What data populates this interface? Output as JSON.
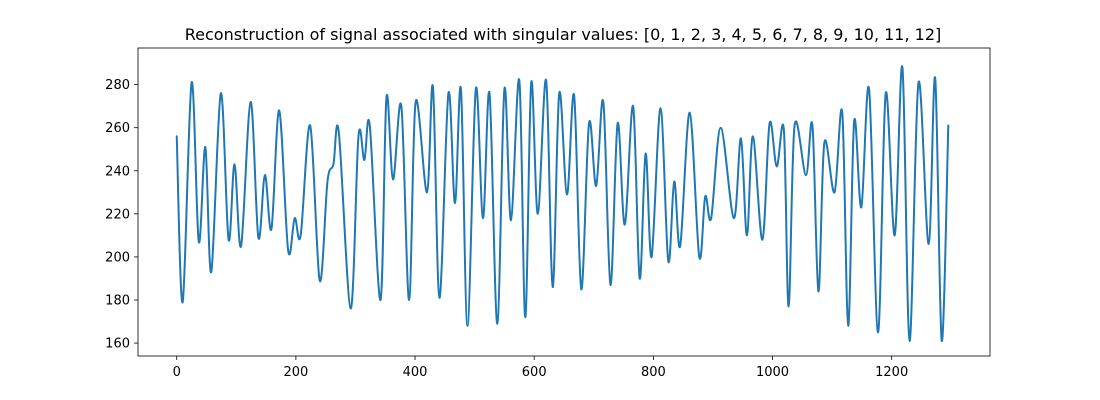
{
  "chart_data": {
    "type": "line",
    "title": "Reconstruction of signal associated with singular values: [0, 1, 2, 3, 4, 5, 6, 7, 8, 9, 10, 11, 12]",
    "xlabel": "",
    "ylabel": "",
    "xlim": [
      -65,
      1365
    ],
    "ylim": [
      154,
      297
    ],
    "xticks": [
      0,
      200,
      400,
      600,
      800,
      1000,
      1200
    ],
    "yticks": [
      160,
      180,
      200,
      220,
      240,
      260,
      280
    ],
    "grid": false,
    "legend": "none",
    "series": [
      {
        "color": "#1f77b4",
        "x": [
          0,
          10,
          25,
          37,
          48,
          58,
          74,
          87,
          97,
          108,
          124,
          137,
          148,
          159,
          172,
          187,
          198,
          208,
          224,
          240,
          253,
          263,
          272,
          292,
          305,
          315,
          324,
          342,
          352,
          363,
          377,
          390,
          401,
          420,
          430,
          441,
          456,
          467,
          477,
          488,
          502,
          514,
          525,
          538,
          550,
          561,
          575,
          585,
          595,
          606,
          620,
          631,
          642,
          655,
          667,
          679,
          692,
          704,
          716,
          728,
          740,
          752,
          766,
          777,
          787,
          797,
          812,
          825,
          835,
          845,
          861,
          877,
          887,
          897,
          913,
          935,
          947,
          957,
          967,
          983,
          995,
          1007,
          1019,
          1027,
          1037,
          1056,
          1067,
          1077,
          1087,
          1104,
          1117,
          1127,
          1137,
          1149,
          1162,
          1177,
          1190,
          1205,
          1218,
          1230,
          1245,
          1262,
          1273,
          1284,
          1295
        ],
        "y": [
          256,
          179,
          281,
          207,
          251,
          193,
          276,
          208,
          243,
          205,
          272,
          209,
          238,
          213,
          268,
          203,
          218,
          210,
          261,
          189,
          235,
          243,
          258,
          176,
          256,
          245,
          261,
          180,
          274,
          236,
          270,
          180,
          272,
          230,
          279,
          181,
          276,
          225,
          278,
          168,
          278,
          218,
          276,
          169,
          278,
          217,
          282,
          172,
          281,
          220,
          282,
          186,
          276,
          229,
          275,
          185,
          262,
          233,
          272,
          187,
          262,
          215,
          270,
          190,
          248,
          200,
          269,
          198,
          235,
          205,
          267,
          200,
          228,
          218,
          260,
          218,
          255,
          210,
          256,
          208,
          262,
          242,
          259,
          177,
          261,
          238,
          261,
          184,
          253,
          230,
          267,
          168,
          263,
          223,
          278,
          165,
          276,
          210,
          288,
          161,
          281,
          206,
          283,
          161,
          261
        ]
      }
    ]
  }
}
